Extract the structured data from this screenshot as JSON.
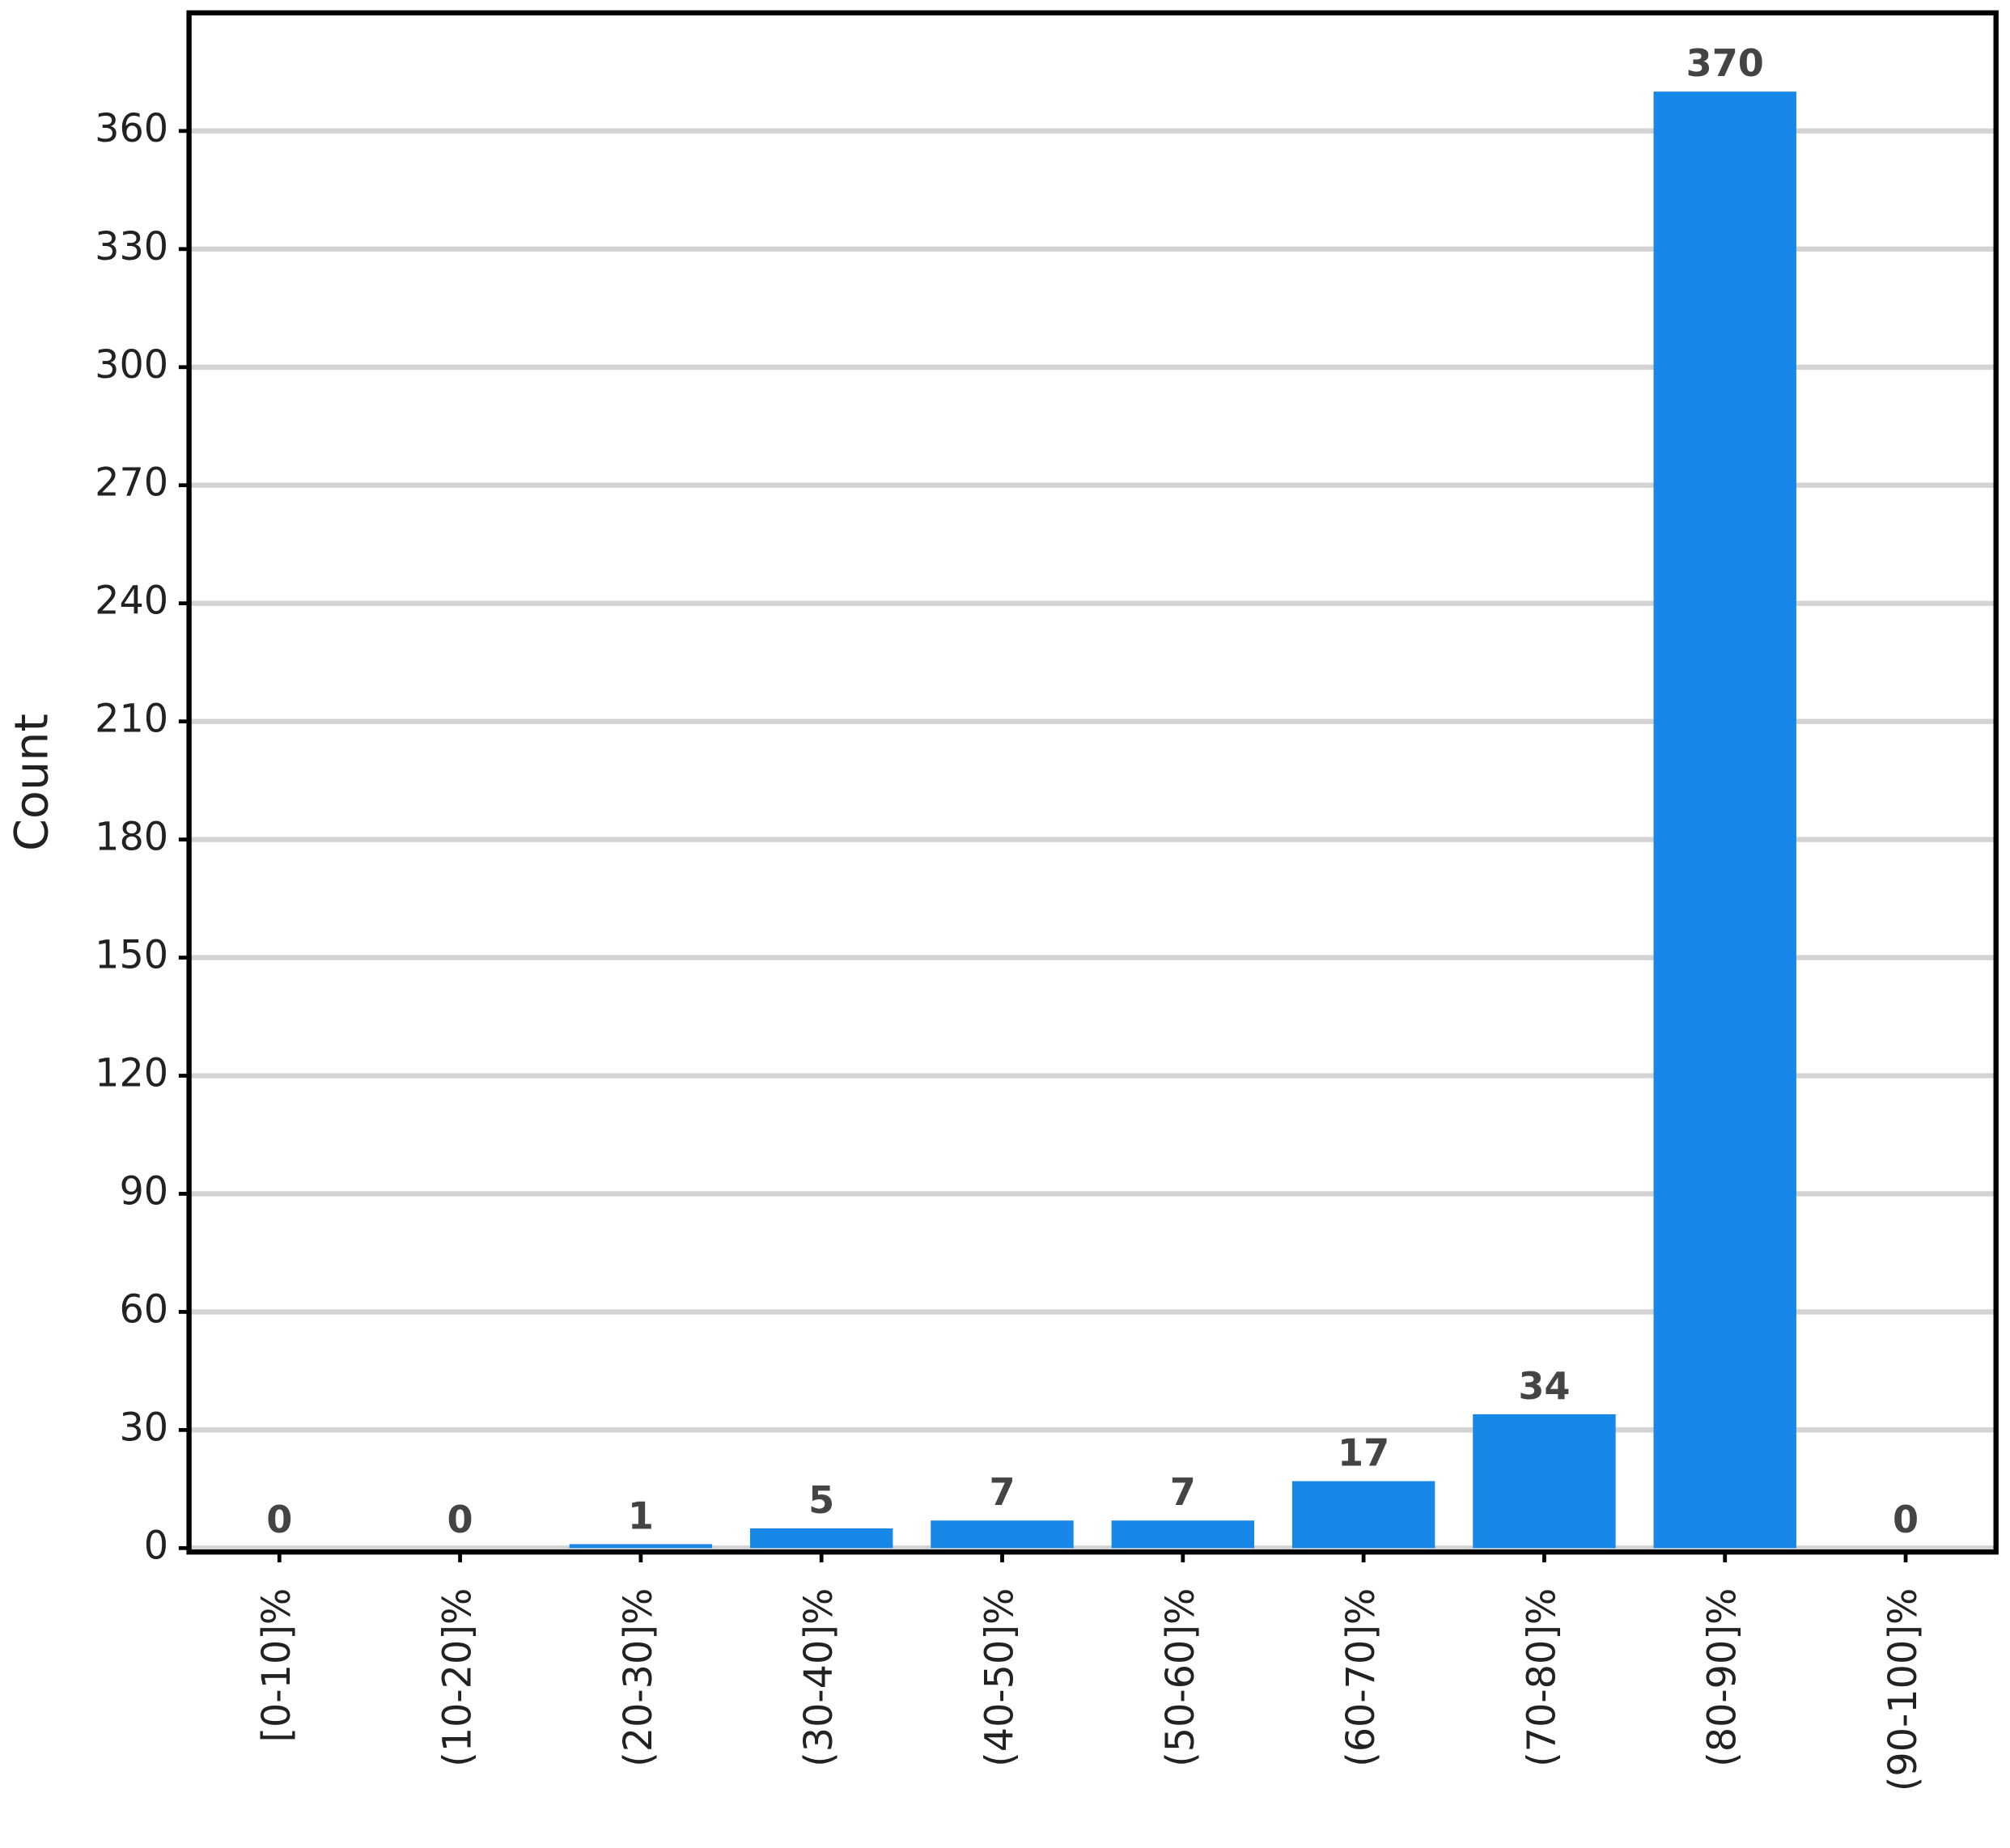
{
  "chart_data": {
    "type": "bar",
    "y_label": "Count",
    "categories": [
      "[0-10]%",
      "(10-20]%",
      "(20-30]%",
      "(30-40]%",
      "(40-50]%",
      "(50-60]%",
      "(60-70]%",
      "(70-80]%",
      "(80-90]%",
      "(90-100]%"
    ],
    "values": [
      0,
      0,
      1,
      5,
      7,
      7,
      17,
      34,
      370,
      0
    ],
    "color": "#1788e8",
    "ylim": [
      -1,
      390
    ],
    "yticks": [
      0,
      30,
      60,
      90,
      120,
      150,
      180,
      210,
      240,
      270,
      300,
      330,
      360
    ],
    "grid": true
  }
}
